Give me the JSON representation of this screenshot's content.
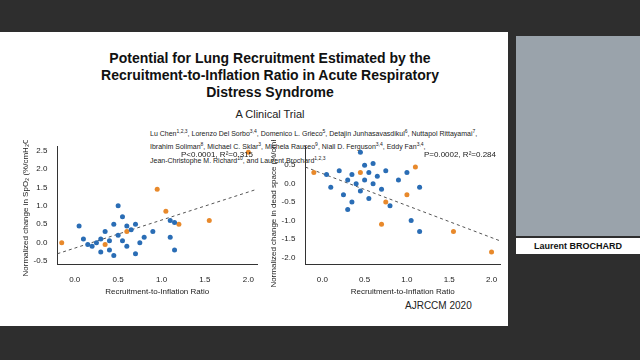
{
  "slide": {
    "title_lines": [
      "Potential for Lung Recruitment Estimated by the",
      "Recruitment-to-Inflation Ratio in Acute Respiratory",
      "Distress Syndrome"
    ],
    "subtitle": "A Clinical Trial",
    "author_lines": [
      [
        {
          "text": "Lu Chen",
          "sup": "1,2,3"
        },
        {
          "text": ", Lorenzo Del Sorbo",
          "sup": "3,4"
        },
        {
          "text": ", Domenico L. Grieco",
          "sup": "5"
        },
        {
          "text": ", Detajin Junhasavasdikul",
          "sup": "6"
        },
        {
          "text": ", Nuttapol Rittayamai",
          "sup": "7"
        },
        {
          "text": ",",
          "sup": null
        }
      ],
      [
        {
          "text": "Ibrahim Soliman",
          "sup": "8"
        },
        {
          "text": ", Michael C. Sklar",
          "sup": "3"
        },
        {
          "text": ", Michela Rauseo",
          "sup": "9"
        },
        {
          "text": ", Niall D. Ferguson",
          "sup": "3,4"
        },
        {
          "text": ", Eddy Fan",
          "sup": "3,4"
        },
        {
          "text": ",",
          "sup": null
        }
      ],
      [
        {
          "text": "Jean-Christophe M. Richard",
          "sup": "10"
        },
        {
          "text": ", and Laurent Brochard",
          "sup": "1,2,3"
        }
      ]
    ],
    "citation": "AJRCCM 2020",
    "speaker": "Laurent BROCHARD"
  },
  "chart_data": [
    {
      "type": "scatter",
      "x_label": "Recruitment-to-Inflation Ratio",
      "y_label": "Normalized change in SpO₂ (%/cmH₂O)",
      "annotations": [
        "P<0.0001, R²=0.315"
      ],
      "xlim": [
        -0.2,
        2.1
      ],
      "xticks": [
        {
          "value": 0,
          "label": "0.0"
        },
        0.5,
        {
          "value": 1,
          "label": "1.0"
        },
        1.5,
        {
          "value": 2,
          "label": "2.0"
        }
      ],
      "ylim": [
        -0.6,
        2.6
      ],
      "yticks": [
        -0.5,
        {
          "value": 0,
          "label": "0.0"
        },
        0.5,
        {
          "value": 1,
          "label": "1.0"
        },
        1.5,
        {
          "value": 2,
          "label": "2.0"
        },
        2.5
      ],
      "grid": false,
      "series": [
        {
          "color": "#2a6db5",
          "marker": "circle",
          "x": [
            0.05,
            0.1,
            0.15,
            0.2,
            0.25,
            0.3,
            0.3,
            0.35,
            0.4,
            0.4,
            0.45,
            0.45,
            0.5,
            0.5,
            0.55,
            0.55,
            0.6,
            0.6,
            0.65,
            0.7,
            0.7,
            0.75,
            0.8,
            0.9,
            1.1,
            1.1,
            1.15,
            1.15
          ],
          "values": [
            0.45,
            0.1,
            -0.05,
            -0.1,
            0.0,
            0.1,
            -0.25,
            0.3,
            0.05,
            -0.2,
            0.5,
            -0.35,
            1.0,
            0.2,
            0.7,
            0.05,
            -0.1,
            0.45,
            0.35,
            0.5,
            -0.3,
            0.0,
            0.15,
            0.3,
            0.6,
            0.15,
            0.55,
            -0.2
          ]
        },
        {
          "color": "#e8892b",
          "marker": "circle",
          "x": [
            -0.15,
            0.35,
            0.6,
            0.95,
            1.05,
            1.2,
            1.55,
            2.0
          ],
          "values": [
            0.0,
            -0.05,
            0.3,
            1.45,
            0.85,
            0.5,
            0.6,
            2.45
          ]
        },
        {
          "type": "line",
          "color": "#555555",
          "line_style": "dashed",
          "x": [
            -0.2,
            2.1
          ],
          "values": [
            -0.3,
            1.45
          ]
        }
      ]
    },
    {
      "type": "scatter",
      "x_label": "Recruitment-to-Inflation Ratio",
      "y_label": "Normalized change in dead space (%/cmH₂O)",
      "annotations": [
        "P=0.0002, R²=0.284"
      ],
      "xlim": [
        -0.2,
        2.1
      ],
      "xticks": [
        {
          "value": 0,
          "label": "0.0"
        },
        0.5,
        {
          "value": 1,
          "label": "1.0"
        },
        1.5,
        {
          "value": 2,
          "label": "2.0"
        }
      ],
      "ylim": [
        -2.2,
        1.0
      ],
      "yticks": [
        {
          "value": -2,
          "label": "-2.0"
        },
        -1.5,
        {
          "value": -1,
          "label": "-1.0"
        },
        -0.5,
        {
          "value": 0,
          "label": "0.0"
        },
        0.5
      ],
      "grid": false,
      "series": [
        {
          "color": "#2a6db5",
          "marker": "circle",
          "x": [
            0.05,
            0.1,
            0.2,
            0.25,
            0.3,
            0.3,
            0.35,
            0.35,
            0.4,
            0.45,
            0.45,
            0.5,
            0.5,
            0.55,
            0.55,
            0.6,
            0.6,
            0.65,
            0.7,
            0.75,
            0.8,
            0.9,
            1.0,
            1.05,
            1.15,
            1.15
          ],
          "values": [
            0.25,
            -0.1,
            0.35,
            -0.3,
            0.1,
            -0.7,
            0.25,
            -0.5,
            0.0,
            0.85,
            -0.2,
            0.5,
            0.1,
            0.3,
            -0.4,
            0.0,
            0.55,
            0.2,
            -0.15,
            0.35,
            -0.6,
            0.1,
            0.3,
            -1.0,
            -0.1,
            -1.3
          ]
        },
        {
          "color": "#e8892b",
          "marker": "circle",
          "x": [
            -0.1,
            0.45,
            0.7,
            0.75,
            1.0,
            1.1,
            1.55,
            2.0
          ],
          "values": [
            0.3,
            0.3,
            -1.1,
            -0.5,
            -0.3,
            0.45,
            -1.3,
            -1.85
          ]
        },
        {
          "type": "line",
          "color": "#555555",
          "line_style": "dashed",
          "x": [
            -0.2,
            2.1
          ],
          "values": [
            0.45,
            -1.55
          ]
        }
      ]
    }
  ]
}
